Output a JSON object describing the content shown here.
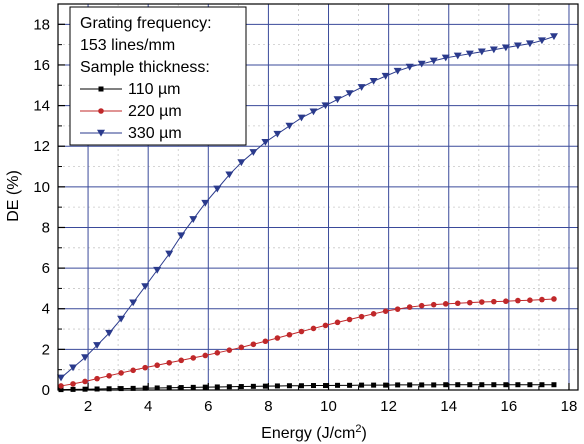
{
  "chart_data": {
    "type": "line",
    "xlabel": "Energy (J/cm",
    "xlabel_sup": "2",
    "xlabel_end": ")",
    "ylabel": "DE (%)",
    "xlim": [
      1.0,
      18.3
    ],
    "ylim": [
      0,
      19
    ],
    "xticks": [
      2,
      4,
      6,
      8,
      10,
      12,
      14,
      16,
      18
    ],
    "yticks": [
      0,
      2,
      4,
      6,
      8,
      10,
      12,
      14,
      16,
      18
    ],
    "grid": true,
    "legend_position": "top-left",
    "legend": {
      "line1": "Grating frequency:",
      "line2": "153 lines/mm",
      "line3": "Sample thickness:"
    },
    "series": [
      {
        "name": "110 µm",
        "color": "#000000",
        "marker": "square",
        "x": [
          1.1,
          1.5,
          1.9,
          2.3,
          2.7,
          3.1,
          3.5,
          3.9,
          4.3,
          4.7,
          5.1,
          5.5,
          5.9,
          6.3,
          6.7,
          7.1,
          7.5,
          7.9,
          8.3,
          8.7,
          9.1,
          9.5,
          9.9,
          10.3,
          10.7,
          11.1,
          11.5,
          11.9,
          12.3,
          12.7,
          13.1,
          13.5,
          13.9,
          14.3,
          14.7,
          15.1,
          15.5,
          15.9,
          16.3,
          16.7,
          17.1,
          17.5
        ],
        "y": [
          0.02,
          0.03,
          0.04,
          0.05,
          0.06,
          0.07,
          0.08,
          0.09,
          0.1,
          0.11,
          0.12,
          0.13,
          0.14,
          0.15,
          0.16,
          0.17,
          0.18,
          0.19,
          0.2,
          0.21,
          0.21,
          0.22,
          0.22,
          0.23,
          0.23,
          0.24,
          0.24,
          0.24,
          0.25,
          0.25,
          0.25,
          0.25,
          0.26,
          0.26,
          0.26,
          0.26,
          0.26,
          0.26,
          0.26,
          0.26,
          0.26,
          0.26
        ]
      },
      {
        "name": "220 µm",
        "color": "#c0282a",
        "marker": "circle",
        "x": [
          1.1,
          1.5,
          1.9,
          2.3,
          2.7,
          3.1,
          3.5,
          3.9,
          4.3,
          4.7,
          5.1,
          5.5,
          5.9,
          6.3,
          6.7,
          7.1,
          7.5,
          7.9,
          8.3,
          8.7,
          9.1,
          9.5,
          9.9,
          10.3,
          10.7,
          11.1,
          11.5,
          11.9,
          12.3,
          12.7,
          13.1,
          13.5,
          13.9,
          14.3,
          14.7,
          15.1,
          15.5,
          15.9,
          16.3,
          16.7,
          17.1,
          17.5
        ],
        "y": [
          0.2,
          0.3,
          0.42,
          0.56,
          0.7,
          0.84,
          0.97,
          1.1,
          1.22,
          1.34,
          1.46,
          1.58,
          1.7,
          1.83,
          1.96,
          2.1,
          2.25,
          2.4,
          2.56,
          2.72,
          2.88,
          3.03,
          3.18,
          3.33,
          3.47,
          3.61,
          3.75,
          3.88,
          3.98,
          4.08,
          4.15,
          4.2,
          4.24,
          4.27,
          4.3,
          4.33,
          4.35,
          4.37,
          4.4,
          4.42,
          4.45,
          4.48
        ]
      },
      {
        "name": "330 µm",
        "color": "#2a3a8c",
        "marker": "triangle-down",
        "x": [
          1.1,
          1.5,
          1.9,
          2.3,
          2.7,
          3.1,
          3.5,
          3.9,
          4.3,
          4.7,
          5.1,
          5.5,
          5.9,
          6.3,
          6.7,
          7.1,
          7.5,
          7.9,
          8.3,
          8.7,
          9.1,
          9.5,
          9.9,
          10.3,
          10.7,
          11.1,
          11.5,
          11.9,
          12.3,
          12.7,
          13.1,
          13.5,
          13.9,
          14.3,
          14.7,
          15.1,
          15.5,
          15.9,
          16.3,
          16.7,
          17.1,
          17.5
        ],
        "y": [
          0.6,
          1.1,
          1.6,
          2.2,
          2.8,
          3.5,
          4.3,
          5.1,
          5.9,
          6.7,
          7.6,
          8.4,
          9.2,
          9.9,
          10.6,
          11.2,
          11.7,
          12.2,
          12.6,
          13.0,
          13.4,
          13.7,
          14.0,
          14.3,
          14.6,
          14.9,
          15.2,
          15.45,
          15.7,
          15.9,
          16.05,
          16.2,
          16.35,
          16.45,
          16.55,
          16.65,
          16.75,
          16.85,
          16.95,
          17.05,
          17.2,
          17.4
        ]
      }
    ]
  }
}
